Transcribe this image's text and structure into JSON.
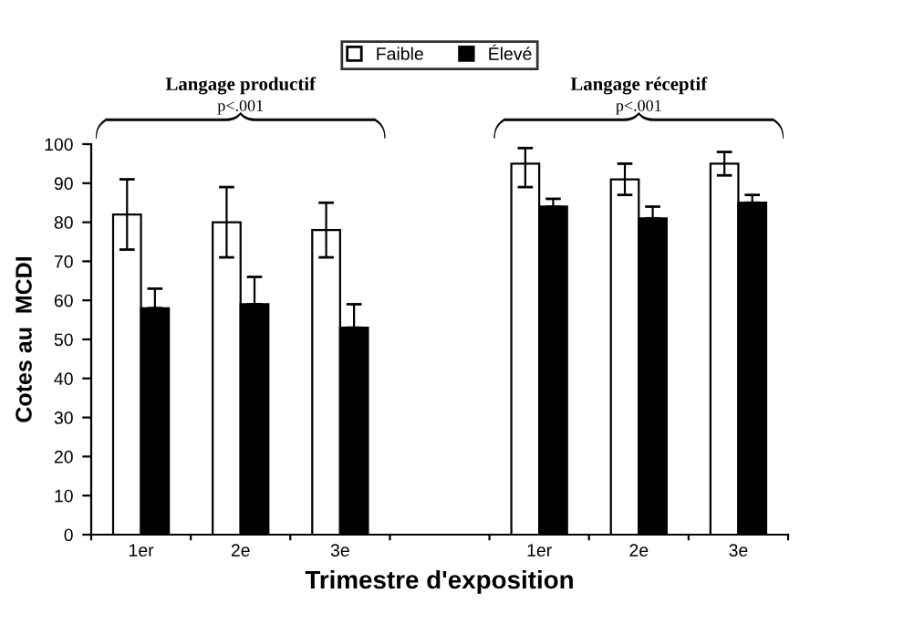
{
  "chart_data": {
    "type": "bar",
    "categories": [
      "1er",
      "2e",
      "3e",
      null,
      "1er",
      "2e",
      "3e"
    ],
    "series": [
      {
        "name": "Faible",
        "color": "#ffffff",
        "values": [
          82,
          80,
          78,
          null,
          95,
          91,
          95
        ],
        "errors": [
          [
            73,
            91
          ],
          [
            71,
            89
          ],
          [
            71,
            85
          ],
          null,
          [
            89,
            99
          ],
          [
            87,
            95
          ],
          [
            92,
            98
          ]
        ]
      },
      {
        "name": "Élevé",
        "color": "#000000",
        "values": [
          58,
          59,
          53,
          null,
          84,
          81,
          85
        ],
        "errors": [
          [
            58,
            63
          ],
          [
            59,
            66
          ],
          [
            53,
            59
          ],
          null,
          [
            84,
            86
          ],
          [
            81,
            84
          ],
          [
            85,
            87
          ]
        ]
      }
    ],
    "xlabel": "Trimestre d'exposition",
    "ylabel": "Cotes au  MCDI",
    "ylim": [
      0,
      100
    ],
    "yticks": [
      0,
      10,
      20,
      30,
      40,
      50,
      60,
      70,
      80,
      90,
      100
    ],
    "annotations": [
      "Langage productif",
      "p<.001",
      "Langage réceptif",
      "p<.001"
    ],
    "legend": "top",
    "grid": false
  }
}
